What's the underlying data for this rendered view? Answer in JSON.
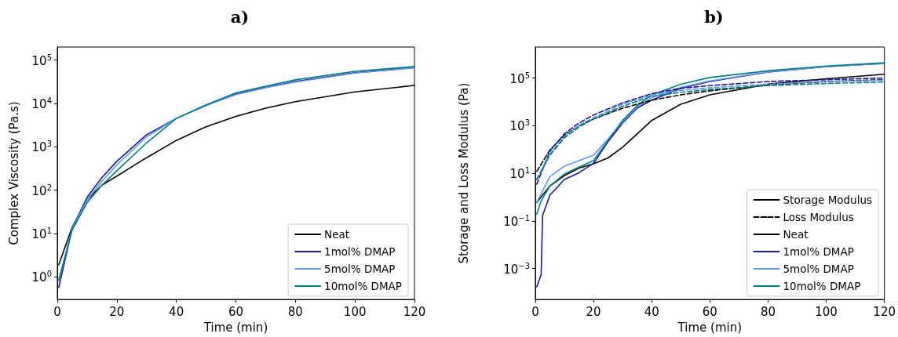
{
  "chart_data": [
    {
      "type": "line",
      "title": "a)",
      "xlabel": "Time (min)",
      "ylabel": "Complex Viscosity (Pa.s)",
      "log": "y",
      "grid": false,
      "legend": "bottom right",
      "marker": "none",
      "line_style": "solid",
      "x": [
        0.5,
        5,
        10,
        15,
        20,
        30,
        40,
        50,
        60,
        70,
        80,
        100,
        120
      ],
      "xlim": [
        0,
        120
      ],
      "xticks": [
        0,
        20,
        40,
        60,
        80,
        100,
        120
      ],
      "ylim": [
        0.3,
        200000
      ],
      "yticks": [
        {
          "value": 1,
          "label": "10$^{0}$"
        },
        {
          "value": 10,
          "label": "10$^{1}$"
        },
        {
          "value": 100,
          "label": "10$^{2}$"
        },
        {
          "value": 1000,
          "label": "10$^{3}$"
        },
        {
          "value": 10000,
          "label": "10$^{4}$"
        },
        {
          "value": 100000,
          "label": "10$^{5}$"
        }
      ],
      "series": [
        {
          "name": "Neat",
          "color": "#000000",
          "values": [
            1.9,
            14,
            60,
            130,
            210,
            560,
            1400,
            2900,
            5000,
            7800,
            11000,
            18500,
            26000
          ]
        },
        {
          "name": "1mol% DMAP",
          "color": "#1a1a8c",
          "values": [
            0.57,
            13,
            68,
            195,
            460,
            1900,
            4500,
            9000,
            16500,
            23500,
            32000,
            51000,
            67000
          ]
        },
        {
          "name": "5mol% DMAP",
          "color": "#6495ed",
          "values": [
            0.8,
            13,
            60,
            160,
            380,
            1700,
            4500,
            9000,
            16000,
            23000,
            31000,
            50000,
            66000
          ]
        },
        {
          "name": "10mol% DMAP",
          "color": "#008080",
          "values": [
            0.85,
            12,
            51,
            130,
            280,
            1230,
            4500,
            9300,
            17500,
            25000,
            35000,
            55000,
            71000
          ]
        }
      ]
    },
    {
      "type": "line",
      "title": "b)",
      "xlabel": "Time (min)",
      "ylabel": "Storage and Loss Modulus (Pa)",
      "log": "y",
      "grid": false,
      "legend": "bottom right",
      "marker": "none",
      "xlim": [
        0,
        120
      ],
      "xticks": [
        0,
        20,
        40,
        60,
        80,
        100,
        120
      ],
      "ylim": [
        5e-05,
        2000000
      ],
      "yticks": [
        {
          "value": 0.001,
          "label": "10$^{−3}$"
        },
        {
          "value": 0.1,
          "label": "10$^{−1}$"
        },
        {
          "value": 10,
          "label": "10$^{1}$"
        },
        {
          "value": 1000,
          "label": "10$^{3}$"
        },
        {
          "value": 100000,
          "label": "10$^{5}$"
        }
      ],
      "series": [
        {
          "name": "Storage Modulus",
          "color": "#000000",
          "line_style": "solid"
        },
        {
          "name": "Loss Modulus",
          "color": "#000000",
          "line_style": "dashed"
        },
        {
          "name": "Neat",
          "color": "#000000",
          "line_style": "solid",
          "x": [
            0.5,
            5,
            10,
            15,
            20,
            25,
            30,
            35,
            40,
            50,
            60,
            80,
            100,
            120
          ],
          "values": [
            0.6,
            2.9,
            8,
            16.5,
            25,
            44,
            123,
            450,
            1650,
            7900,
            19600,
            55000,
            93000,
            144000
          ]
        },
        {
          "name": "1mol% DMAP",
          "color": "#1a1a8c",
          "line_style": "solid",
          "x": [
            0.5,
            2,
            2.5,
            4,
            5,
            7,
            10,
            15,
            20,
            25,
            30,
            35,
            40,
            50,
            60,
            80,
            100,
            120
          ],
          "values": [
            0.00017,
            0.00056,
            0.17,
            0.54,
            1.2,
            2.2,
            5.5,
            10.5,
            26,
            210,
            1290,
            5400,
            11700,
            37000,
            71000,
            178000,
            300000,
            405000
          ]
        },
        {
          "name": "5mol% DMAP",
          "color": "#6495ed",
          "line_style": "solid",
          "x": [
            0.5,
            5,
            10,
            15,
            20,
            25,
            30,
            35,
            40,
            50,
            60,
            80,
            100,
            120
          ],
          "values": [
            0.6,
            7.2,
            20,
            34,
            57,
            270,
            1450,
            6000,
            15000,
            40000,
            75000,
            180000,
            300000,
            410000
          ]
        },
        {
          "name": "10mol% DMAP",
          "color": "#008080",
          "line_style": "solid",
          "x": [
            0.5,
            2,
            5,
            10,
            15,
            20,
            25,
            30,
            35,
            40,
            50,
            60,
            80,
            100,
            120
          ],
          "values": [
            0.19,
            0.7,
            2.9,
            9.3,
            18,
            34,
            240,
            1660,
            6900,
            19600,
            55000,
            105000,
            200000,
            320000,
            435000
          ]
        },
        {
          "color": "#000000",
          "line_style": "dashed",
          "x": [
            0.5,
            5,
            10,
            15,
            20,
            30,
            40,
            50,
            60,
            80,
            100,
            120
          ],
          "values": [
            12,
            95,
            400,
            1000,
            1900,
            5400,
            11700,
            19600,
            29000,
            51000,
            71000,
            85000
          ]
        },
        {
          "color": "#1a1a8c",
          "line_style": "dashed",
          "x": [
            0.5,
            5,
            10,
            15,
            20,
            30,
            40,
            50,
            60,
            80,
            100,
            120
          ],
          "values": [
            3.5,
            85,
            460,
            1290,
            2800,
            9000,
            22000,
            37000,
            48000,
            71000,
            85000,
            100000
          ]
        },
        {
          "color": "#6495ed",
          "line_style": "dashed",
          "x": [
            0.5,
            5,
            10,
            15,
            20,
            30,
            40,
            50,
            60,
            80,
            100,
            120
          ],
          "values": [
            5.5,
            65,
            350,
            1050,
            2150,
            7900,
            19600,
            30000,
            39000,
            55000,
            71000,
            81000
          ]
        },
        {
          "color": "#008080",
          "line_style": "dashed",
          "x": [
            0.5,
            5,
            10,
            15,
            20,
            30,
            40,
            50,
            60,
            80,
            100,
            120
          ],
          "values": [
            5.5,
            57,
            310,
            870,
            1900,
            6500,
            17000,
            25000,
            33000,
            48000,
            59000,
            68000
          ]
        }
      ]
    }
  ]
}
